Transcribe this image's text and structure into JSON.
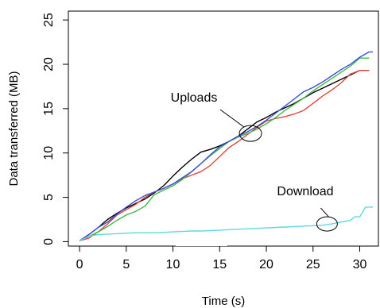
{
  "chart_data": {
    "type": "line",
    "title": "",
    "xlabel": "Time (s)",
    "ylabel": "Data transferred (MB)",
    "xlim": [
      -1.2,
      32
    ],
    "ylim": [
      -0.5,
      26
    ],
    "xticks": [
      0,
      5,
      10,
      15,
      20,
      25,
      30
    ],
    "yticks": [
      0,
      5,
      10,
      15,
      20,
      25
    ],
    "grid": false,
    "series": [
      {
        "color": "#000000",
        "x": [
          0,
          1,
          2,
          3,
          4,
          5,
          6,
          7,
          8,
          9,
          10,
          11,
          12,
          13,
          14,
          15,
          16,
          17,
          18,
          19,
          20,
          21,
          22,
          23,
          24,
          25,
          26,
          27,
          28,
          29,
          30,
          31
        ],
        "y": [
          0.1,
          0.8,
          1.6,
          2.5,
          3.2,
          3.8,
          4.3,
          4.8,
          5.5,
          6.3,
          7.4,
          8.4,
          9.3,
          10.1,
          10.4,
          10.8,
          11.3,
          11.9,
          12.7,
          13.5,
          14.0,
          14.6,
          15.1,
          15.6,
          16.2,
          16.8,
          17.3,
          17.8,
          18.3,
          18.8,
          19.3,
          19.3
        ]
      },
      {
        "color": "#e0463c",
        "x": [
          0,
          1,
          2,
          3,
          4,
          5,
          6,
          7,
          8,
          9,
          10,
          11,
          12,
          13,
          14,
          15,
          16,
          17,
          18,
          19,
          20,
          21,
          22,
          23,
          24,
          25,
          26,
          27,
          28,
          29,
          30,
          31
        ],
        "y": [
          0.1,
          0.4,
          1.1,
          2.0,
          3.0,
          3.6,
          4.2,
          5.0,
          5.6,
          6.0,
          6.5,
          7.1,
          7.5,
          7.9,
          8.6,
          9.6,
          10.6,
          11.3,
          12.1,
          12.9,
          13.6,
          13.9,
          14.1,
          14.4,
          14.8,
          15.6,
          16.4,
          17.1,
          17.9,
          18.9,
          19.3,
          19.3
        ]
      },
      {
        "color": "#3fb94a",
        "x": [
          0,
          1,
          2,
          3,
          4,
          5,
          6,
          7,
          8,
          9,
          10,
          11,
          12,
          13,
          14,
          15,
          16,
          17,
          18,
          19,
          20,
          21,
          22,
          23,
          24,
          25,
          26,
          27,
          28,
          29,
          30,
          31
        ],
        "y": [
          0.1,
          0.6,
          1.1,
          1.7,
          2.4,
          3.0,
          3.4,
          4.0,
          5.3,
          5.8,
          6.3,
          7.0,
          7.9,
          8.8,
          9.7,
          10.5,
          11.3,
          11.8,
          12.2,
          12.7,
          13.3,
          14.0,
          14.8,
          15.5,
          16.2,
          17.0,
          17.7,
          18.4,
          19.1,
          19.8,
          20.7,
          20.7
        ]
      },
      {
        "color": "#3b4fd8",
        "x": [
          0,
          1,
          2,
          3,
          4,
          5,
          6,
          7,
          8,
          9,
          10,
          11,
          12,
          13,
          14,
          15,
          16,
          17,
          18,
          19,
          20,
          21,
          22,
          23,
          24,
          25,
          26,
          27,
          28,
          29,
          30,
          31,
          31.4
        ],
        "y": [
          0.1,
          0.8,
          1.6,
          2.2,
          3.1,
          3.9,
          4.6,
          5.2,
          5.6,
          6.0,
          6.5,
          7.2,
          7.9,
          8.8,
          9.8,
          10.7,
          11.3,
          11.9,
          12.4,
          13.0,
          13.7,
          14.5,
          15.3,
          16.1,
          16.9,
          17.4,
          18.0,
          18.7,
          19.4,
          20.0,
          20.8,
          21.4,
          21.4
        ]
      },
      {
        "color": "#5fd9dc",
        "x": [
          0,
          1,
          2,
          3,
          4,
          5,
          6,
          7,
          8,
          9,
          10,
          11,
          12,
          13,
          14,
          15,
          16,
          17,
          18,
          19,
          20,
          21,
          22,
          23,
          24,
          25,
          26,
          27,
          28,
          29,
          29.5,
          30,
          30.3,
          30.6,
          31,
          31.4
        ],
        "y": [
          0.1,
          0.6,
          0.8,
          0.85,
          0.9,
          0.95,
          1.0,
          1.0,
          1.0,
          1.05,
          1.1,
          1.15,
          1.2,
          1.2,
          1.25,
          1.3,
          1.35,
          1.4,
          1.45,
          1.5,
          1.55,
          1.6,
          1.65,
          1.7,
          1.75,
          1.8,
          1.85,
          2.0,
          2.2,
          2.4,
          2.8,
          2.8,
          3.3,
          3.9,
          3.9,
          3.9
        ]
      }
    ],
    "annotations": [
      {
        "text": "Uploads",
        "x": 18.3,
        "y": 12.2
      },
      {
        "text": "Download",
        "x": 26.5,
        "y": 2.0
      }
    ]
  }
}
